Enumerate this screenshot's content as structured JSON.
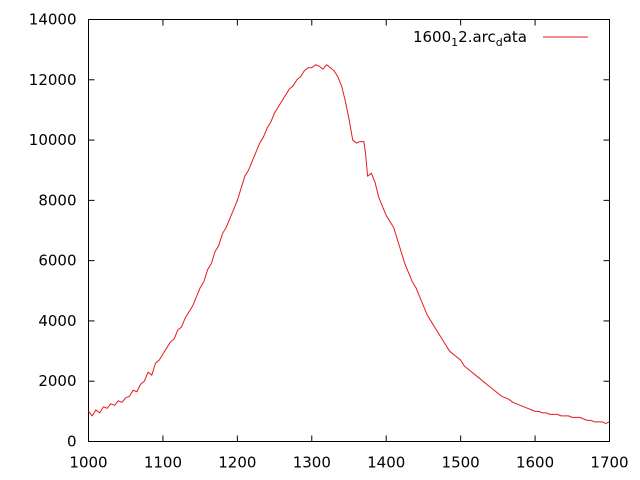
{
  "chart_data": {
    "type": "line",
    "title": "",
    "xlabel": "",
    "ylabel": "",
    "xlim": [
      1000,
      1700
    ],
    "ylim": [
      0,
      14000
    ],
    "xticks": [
      1000,
      1100,
      1200,
      1300,
      1400,
      1500,
      1600,
      1700
    ],
    "yticks": [
      0,
      2000,
      4000,
      6000,
      8000,
      10000,
      12000,
      14000
    ],
    "grid": false,
    "legend_position": "top-right",
    "legend": {
      "main": "1600",
      "sub1": "1",
      "mid": "2.arc",
      "sub2": "d",
      "tail": "ata"
    },
    "series": [
      {
        "name": "1600_12.arc_data",
        "color": "#e41a1c",
        "x": [
          1000,
          1005,
          1010,
          1015,
          1020,
          1025,
          1030,
          1035,
          1040,
          1045,
          1050,
          1055,
          1060,
          1065,
          1070,
          1075,
          1080,
          1085,
          1090,
          1095,
          1100,
          1105,
          1110,
          1115,
          1120,
          1125,
          1130,
          1135,
          1140,
          1145,
          1150,
          1155,
          1160,
          1165,
          1170,
          1175,
          1180,
          1185,
          1190,
          1195,
          1200,
          1205,
          1210,
          1215,
          1220,
          1225,
          1230,
          1235,
          1240,
          1245,
          1250,
          1255,
          1260,
          1265,
          1270,
          1275,
          1280,
          1285,
          1290,
          1295,
          1300,
          1305,
          1310,
          1315,
          1320,
          1325,
          1330,
          1335,
          1340,
          1345,
          1350,
          1355,
          1360,
          1365,
          1370,
          1372,
          1375,
          1380,
          1385,
          1390,
          1395,
          1400,
          1405,
          1410,
          1415,
          1420,
          1425,
          1430,
          1435,
          1440,
          1445,
          1450,
          1455,
          1460,
          1465,
          1470,
          1475,
          1480,
          1485,
          1490,
          1495,
          1500,
          1505,
          1510,
          1515,
          1520,
          1525,
          1530,
          1535,
          1540,
          1545,
          1550,
          1555,
          1560,
          1565,
          1570,
          1575,
          1580,
          1585,
          1590,
          1595,
          1600,
          1605,
          1610,
          1615,
          1620,
          1625,
          1630,
          1635,
          1640,
          1645,
          1650,
          1655,
          1660,
          1665,
          1670,
          1675,
          1680,
          1685,
          1690,
          1695,
          1700
        ],
        "y": [
          1000,
          850,
          1050,
          950,
          1150,
          1100,
          1250,
          1200,
          1350,
          1300,
          1450,
          1500,
          1700,
          1650,
          1900,
          2000,
          2300,
          2200,
          2600,
          2700,
          2900,
          3100,
          3300,
          3400,
          3700,
          3800,
          4100,
          4300,
          4500,
          4800,
          5100,
          5300,
          5700,
          5900,
          6300,
          6500,
          6900,
          7100,
          7400,
          7700,
          8000,
          8400,
          8800,
          9000,
          9300,
          9600,
          9900,
          10100,
          10400,
          10600,
          10900,
          11100,
          11300,
          11500,
          11700,
          11800,
          12000,
          12100,
          12300,
          12400,
          12400,
          12500,
          12450,
          12350,
          12500,
          12400,
          12300,
          12100,
          11800,
          11300,
          10700,
          10000,
          9900,
          9950,
          9950,
          9600,
          8800,
          8900,
          8600,
          8100,
          7800,
          7500,
          7300,
          7100,
          6700,
          6300,
          5900,
          5600,
          5300,
          5100,
          4800,
          4500,
          4200,
          4000,
          3800,
          3600,
          3400,
          3200,
          3000,
          2900,
          2800,
          2700,
          2500,
          2400,
          2300,
          2200,
          2100,
          2000,
          1900,
          1800,
          1700,
          1600,
          1500,
          1450,
          1400,
          1300,
          1250,
          1200,
          1150,
          1100,
          1050,
          1000,
          1000,
          950,
          950,
          900,
          900,
          900,
          850,
          850,
          850,
          800,
          800,
          800,
          750,
          700,
          700,
          650,
          650,
          650,
          600,
          650
        ]
      }
    ]
  }
}
